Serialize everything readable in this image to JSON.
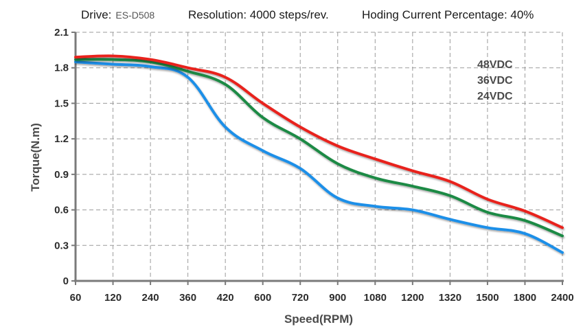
{
  "header": {
    "drive_label": "Drive:",
    "drive_value": "ES-D508",
    "resolution": "Resolution: 4000 steps/rev.",
    "holding_current": "Hoding Current Percentage: 40%"
  },
  "chart_data": {
    "type": "line",
    "xlabel": "Speed(RPM)",
    "ylabel": "Torque(N.m)",
    "categories": [
      "60",
      "120",
      "240",
      "360",
      "420",
      "600",
      "720",
      "900",
      "1080",
      "1200",
      "1320",
      "1500",
      "1800",
      "2400"
    ],
    "yticks": [
      "0",
      "0.3",
      "0.6",
      "0.9",
      "1.2",
      "1.5",
      "1.8",
      "2.1"
    ],
    "ylim": [
      0,
      2.1
    ],
    "grid": true,
    "legend_position": "top-right",
    "series": [
      {
        "name": "48VDC",
        "color": "#e8221f",
        "values": [
          1.89,
          1.9,
          1.87,
          1.8,
          1.72,
          1.5,
          1.3,
          1.14,
          1.03,
          0.93,
          0.84,
          0.69,
          0.59,
          0.45
        ]
      },
      {
        "name": "36VDC",
        "color": "#1f8a45",
        "values": [
          1.87,
          1.87,
          1.85,
          1.77,
          1.66,
          1.38,
          1.2,
          0.99,
          0.87,
          0.8,
          0.72,
          0.58,
          0.51,
          0.38
        ]
      },
      {
        "name": "24VDC",
        "color": "#1f8fe8",
        "values": [
          1.85,
          1.83,
          1.81,
          1.72,
          1.3,
          1.1,
          0.95,
          0.7,
          0.63,
          0.6,
          0.52,
          0.45,
          0.4,
          0.24
        ]
      }
    ]
  }
}
